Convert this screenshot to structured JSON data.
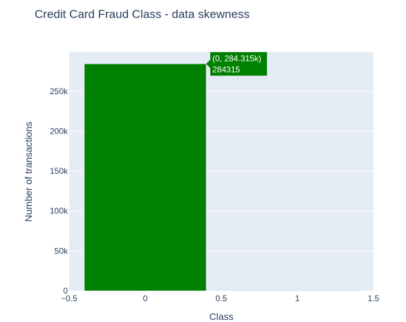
{
  "chart_data": {
    "type": "bar",
    "title": "Credit Card Fraud Class - data skewness",
    "xlabel": "Class",
    "ylabel": "Number of transactions",
    "bars": [
      {
        "x": 0,
        "value": 284315
      },
      {
        "x": 1,
        "value": 492
      }
    ],
    "bar_width": 0.8,
    "xlim": [
      -0.5,
      1.5
    ],
    "ylim": [
      0,
      299279
    ],
    "x_ticks": [
      {
        "value": -0.5,
        "label": "−0.5"
      },
      {
        "value": 0,
        "label": "0"
      },
      {
        "value": 0.5,
        "label": "0.5"
      },
      {
        "value": 1,
        "label": "1"
      },
      {
        "value": 1.5,
        "label": "1.5"
      }
    ],
    "y_ticks": [
      {
        "value": 0,
        "label": "0"
      },
      {
        "value": 50000,
        "label": "50k"
      },
      {
        "value": 100000,
        "label": "100k"
      },
      {
        "value": 150000,
        "label": "150k"
      },
      {
        "value": 200000,
        "label": "200k"
      },
      {
        "value": 250000,
        "label": "250k"
      }
    ],
    "grid": true,
    "bar_color": "#008000",
    "plot_bg": "#e5ecf6",
    "hover": {
      "bar_index": 0,
      "line1": "(0, 284.315k)",
      "line2": "284315"
    }
  }
}
